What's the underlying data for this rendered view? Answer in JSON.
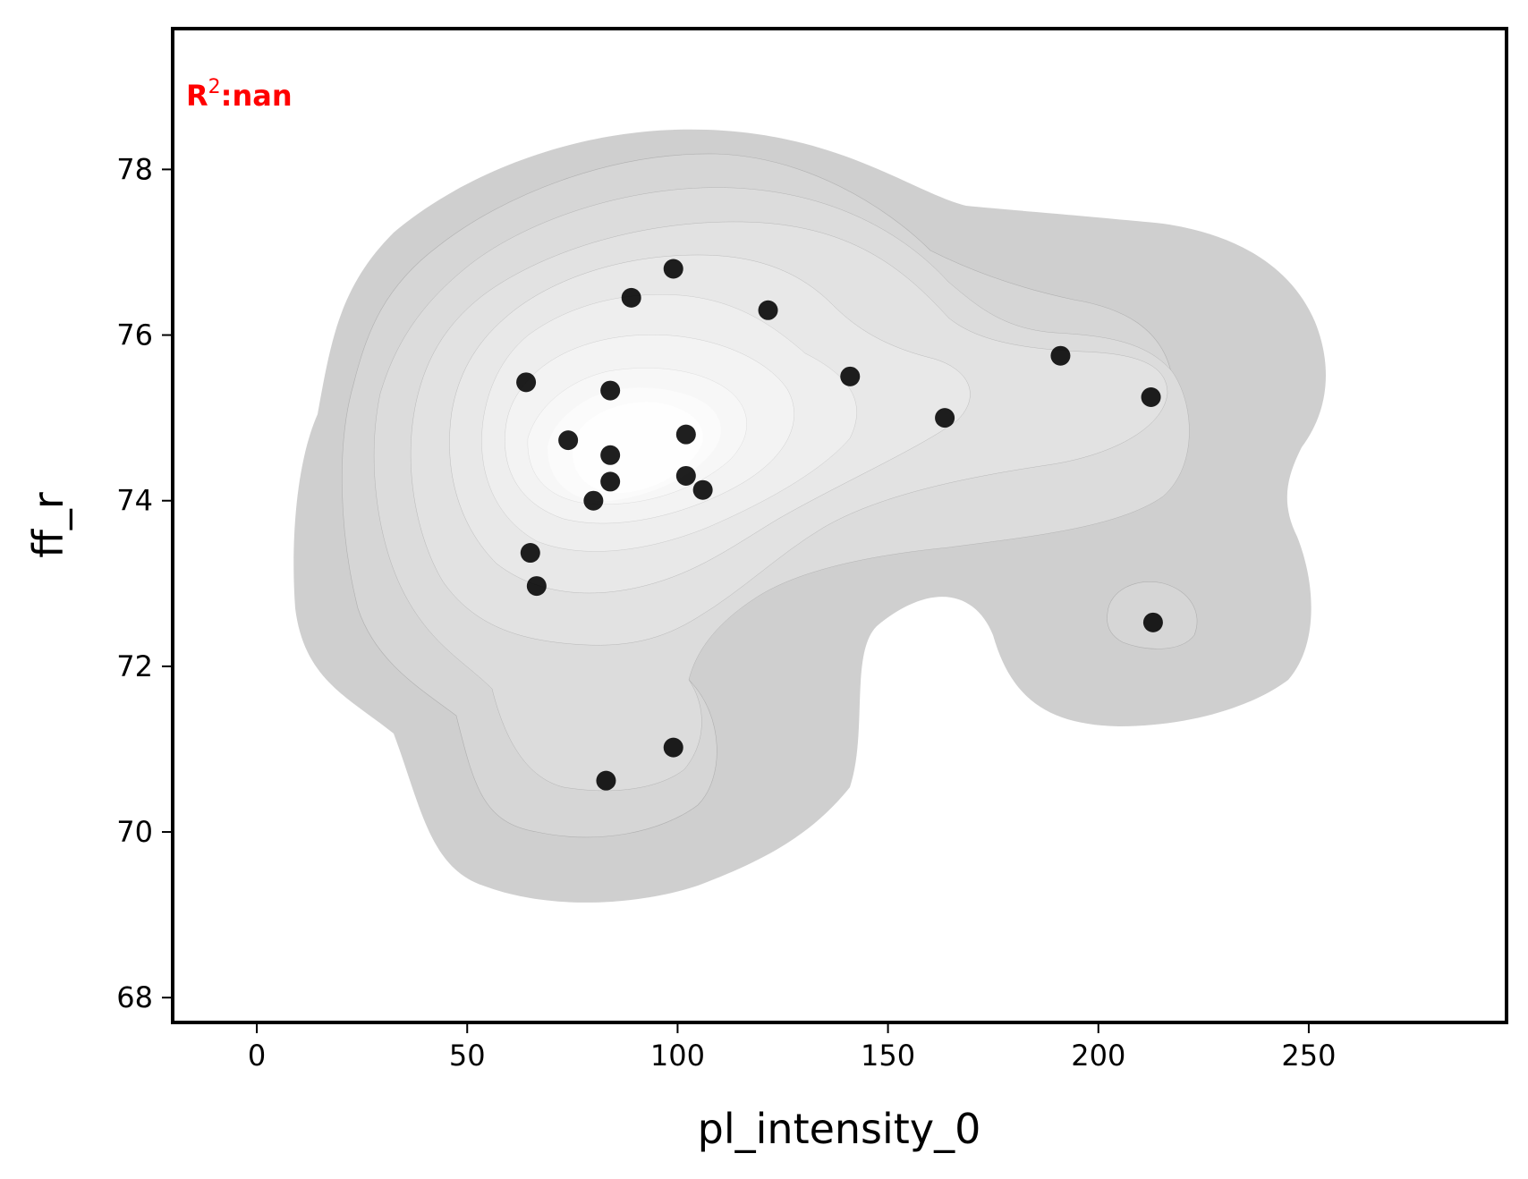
{
  "chart_data": {
    "type": "scatter",
    "xlabel": "pl_intensity_0",
    "ylabel": "ff_r",
    "xlim": [
      -20,
      297
    ],
    "ylim": [
      67.7,
      79.7
    ],
    "xticks": [
      0,
      50,
      100,
      150,
      200,
      250
    ],
    "yticks": [
      68,
      70,
      72,
      74,
      76,
      78
    ],
    "xtick_labels": [
      "0",
      "50",
      "100",
      "150",
      "200",
      "250"
    ],
    "ytick_labels": [
      "68",
      "70",
      "72",
      "74",
      "76",
      "78"
    ],
    "annotation": {
      "prefix": "R",
      "sup": "2",
      "suffix": ":nan",
      "color": "#ff0000"
    },
    "grid": false,
    "background": "density contour (grayscale KDE)",
    "point_color": "#000000",
    "points": [
      {
        "x": 99,
        "y": 76.8
      },
      {
        "x": 89,
        "y": 76.45
      },
      {
        "x": 121.5,
        "y": 76.3
      },
      {
        "x": 64,
        "y": 75.43
      },
      {
        "x": 84,
        "y": 75.33
      },
      {
        "x": 141,
        "y": 75.5
      },
      {
        "x": 191,
        "y": 75.75
      },
      {
        "x": 212.5,
        "y": 75.25
      },
      {
        "x": 163.5,
        "y": 75.0
      },
      {
        "x": 74,
        "y": 74.73
      },
      {
        "x": 102,
        "y": 74.8
      },
      {
        "x": 84,
        "y": 74.55
      },
      {
        "x": 102,
        "y": 74.3
      },
      {
        "x": 84,
        "y": 74.23
      },
      {
        "x": 106,
        "y": 74.13
      },
      {
        "x": 80,
        "y": 74.0
      },
      {
        "x": 65,
        "y": 73.37
      },
      {
        "x": 66.5,
        "y": 72.97
      },
      {
        "x": 213,
        "y": 72.53
      },
      {
        "x": 99,
        "y": 71.02
      },
      {
        "x": 83,
        "y": 70.62
      }
    ]
  }
}
